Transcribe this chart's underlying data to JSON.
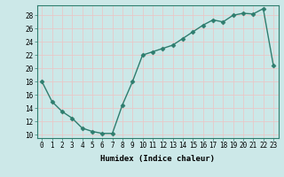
{
  "x": [
    0,
    1,
    2,
    3,
    4,
    5,
    6,
    7,
    8,
    9,
    10,
    11,
    12,
    13,
    14,
    15,
    16,
    17,
    18,
    19,
    20,
    21,
    22,
    23
  ],
  "y": [
    18,
    15,
    13.5,
    12.5,
    11,
    10.5,
    10.2,
    10.2,
    14.5,
    18,
    22,
    22.5,
    23,
    23.5,
    24.5,
    25.5,
    26.5,
    27.3,
    27,
    28,
    28.3,
    28.2,
    29,
    20.5
  ],
  "line_color": "#2e7d6e",
  "marker": "D",
  "marker_size": 2.5,
  "bg_color": "#cce8e8",
  "grid_color": "#e8c8c8",
  "xlabel": "Humidex (Indice chaleur)",
  "ylim": [
    9.5,
    29.5
  ],
  "xlim": [
    -0.5,
    23.5
  ],
  "yticks": [
    10,
    12,
    14,
    16,
    18,
    20,
    22,
    24,
    26,
    28
  ],
  "xticks": [
    0,
    1,
    2,
    3,
    4,
    5,
    6,
    7,
    8,
    9,
    10,
    11,
    12,
    13,
    14,
    15,
    16,
    17,
    18,
    19,
    20,
    21,
    22,
    23
  ],
  "xlabel_fontsize": 6.5,
  "tick_fontsize": 5.5,
  "spine_color": "#2e7d6e",
  "linewidth": 1.0
}
